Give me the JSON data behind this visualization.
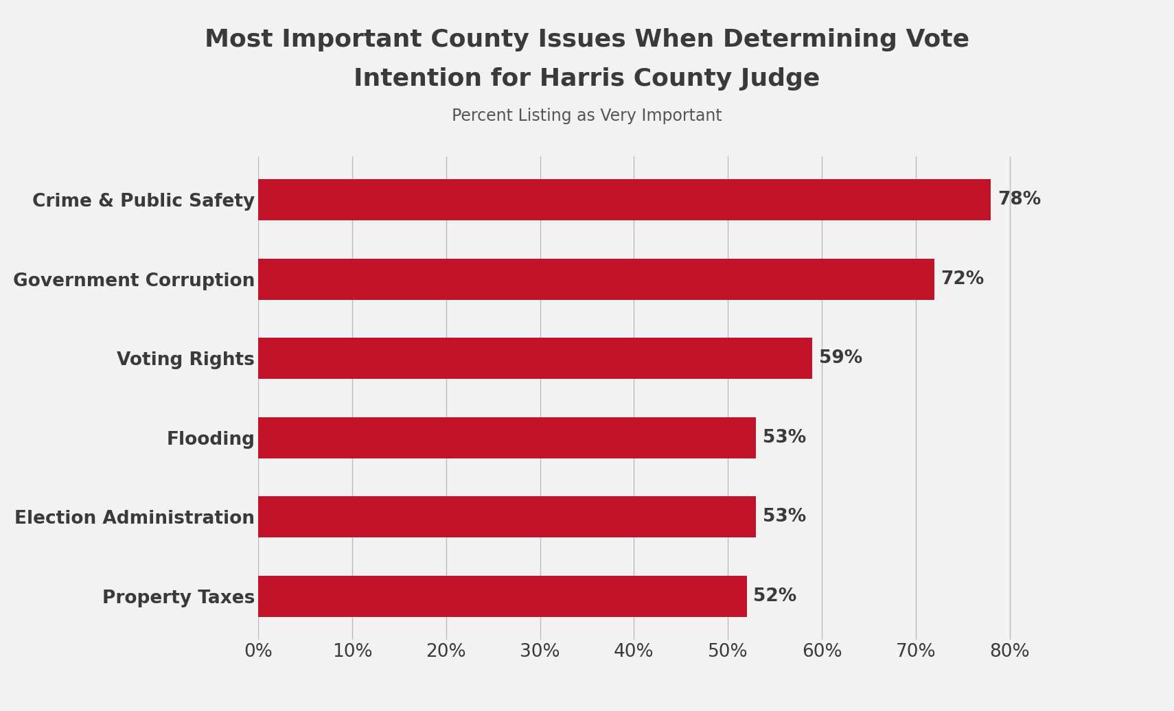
{
  "title_line1": "Most Important County Issues When Determining Vote",
  "title_line2": "Intention for Harris County Judge",
  "subtitle": "Percent Listing as Very Important",
  "categories": [
    "Crime & Public Safety",
    "Government Corruption",
    "Voting Rights",
    "Flooding",
    "Election Administration",
    "Property Taxes"
  ],
  "values": [
    78,
    72,
    59,
    53,
    53,
    52
  ],
  "bar_color": "#C1122A",
  "label_color": "#3A3A3A",
  "title_color": "#3A3A3A",
  "subtitle_color": "#555555",
  "background_color": "#F2F2F2",
  "xlim": [
    0,
    85
  ],
  "xticks": [
    0,
    10,
    20,
    30,
    40,
    50,
    60,
    70,
    80
  ],
  "grid_color": "#BBBBBB",
  "bar_height": 0.52,
  "title_fontsize": 26,
  "subtitle_fontsize": 17,
  "category_fontsize": 19,
  "value_fontsize": 19
}
